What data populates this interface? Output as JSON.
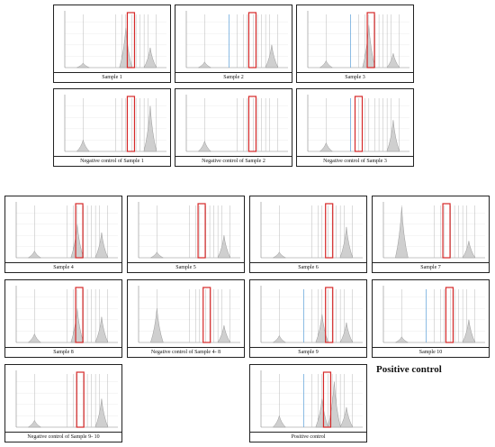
{
  "heading": "Positive control",
  "panels": [
    {
      "caption": "Sample 1",
      "peaks": [
        0.08,
        0.35,
        0.7
      ]
    },
    {
      "caption": "Sample 2",
      "peaks": [
        0.1,
        0.4
      ]
    },
    {
      "caption": "Sample 3",
      "peaks": [
        0.12,
        0.25,
        0.75
      ]
    },
    {
      "caption": "Negative control of Sample 1",
      "peaks": [
        0.2,
        0.8
      ]
    },
    {
      "caption": "Negative control of Sample 2",
      "peaks": [
        0.18
      ]
    },
    {
      "caption": "Negative control of Sample 3",
      "peaks": [
        0.15,
        0.55
      ]
    },
    {
      "caption": "Sample 4",
      "peaks": [
        0.12,
        0.45,
        0.6
      ]
    },
    {
      "caption": "Sample 5",
      "peaks": [
        0.1,
        0.4
      ]
    },
    {
      "caption": "Sample 6",
      "peaks": [
        0.1,
        0.55
      ]
    },
    {
      "caption": "Sample 7",
      "peaks": [
        0.9,
        0.3
      ]
    },
    {
      "caption": "Sample 8",
      "peaks": [
        0.15,
        0.45,
        0.6
      ]
    },
    {
      "caption": "Negative control of Sample 4- 8",
      "peaks": [
        0.6,
        0.3
      ]
    },
    {
      "caption": "Sample 9",
      "peaks": [
        0.12,
        0.35,
        0.5
      ]
    },
    {
      "caption": "Sample 10",
      "peaks": [
        0.1,
        0.4
      ]
    },
    {
      "caption": "Negative control of Sample 9- 10",
      "peaks": [
        0.12,
        0.5
      ]
    },
    {
      "caption": "Positive control",
      "peaks": [
        0.2,
        0.35,
        0.5,
        0.8
      ]
    }
  ],
  "colors": {
    "trace": "#9a9a9a",
    "highlight": "#d62828",
    "marker": "#5aa0d8",
    "grid": "#ececec"
  }
}
